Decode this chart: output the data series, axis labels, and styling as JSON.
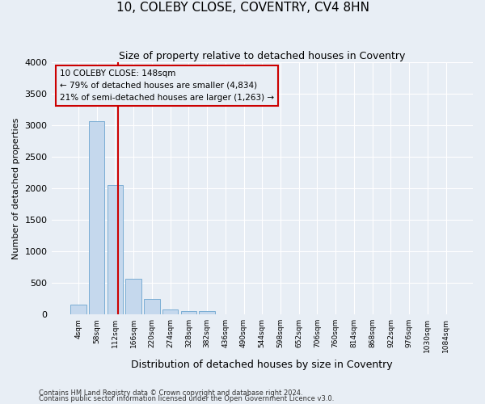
{
  "title": "10, COLEBY CLOSE, COVENTRY, CV4 8HN",
  "subtitle": "Size of property relative to detached houses in Coventry",
  "xlabel": "Distribution of detached houses by size in Coventry",
  "ylabel": "Number of detached properties",
  "bin_labels": [
    "4sqm",
    "58sqm",
    "112sqm",
    "166sqm",
    "220sqm",
    "274sqm",
    "328sqm",
    "382sqm",
    "436sqm",
    "490sqm",
    "544sqm",
    "598sqm",
    "652sqm",
    "706sqm",
    "760sqm",
    "814sqm",
    "868sqm",
    "922sqm",
    "976sqm",
    "1030sqm",
    "1084sqm"
  ],
  "bar_heights": [
    150,
    3060,
    2050,
    570,
    240,
    75,
    50,
    50,
    0,
    0,
    0,
    0,
    0,
    0,
    0,
    0,
    0,
    0,
    0,
    0,
    0
  ],
  "bar_color": "#c5d8ed",
  "bar_edge_color": "#7aadd4",
  "vline_color": "#cc0000",
  "ylim": [
    0,
    4000
  ],
  "yticks": [
    0,
    500,
    1000,
    1500,
    2000,
    2500,
    3000,
    3500,
    4000
  ],
  "annotation_line1": "10 COLEBY CLOSE: 148sqm",
  "annotation_line2": "← 79% of detached houses are smaller (4,834)",
  "annotation_line3": "21% of semi-detached houses are larger (1,263) →",
  "annotation_box_color": "#cc0000",
  "footer1": "Contains HM Land Registry data © Crown copyright and database right 2024.",
  "footer2": "Contains public sector information licensed under the Open Government Licence v3.0.",
  "bg_color": "#e8eef5",
  "grid_color": "#ffffff",
  "title_fontsize": 11,
  "subtitle_fontsize": 9,
  "xlabel_fontsize": 9,
  "ylabel_fontsize": 8
}
